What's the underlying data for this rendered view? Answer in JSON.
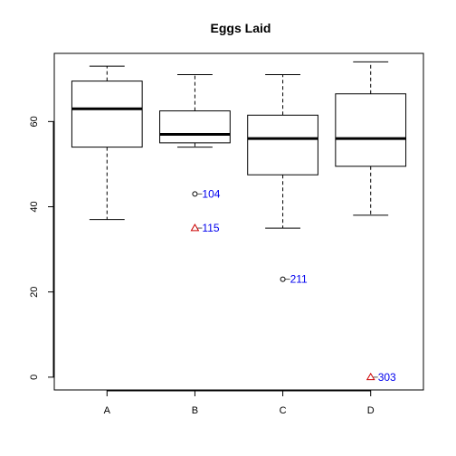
{
  "chart_data": {
    "type": "boxplot",
    "title": "Eggs Laid",
    "xlabel": "",
    "ylabel": "",
    "categories": [
      "A",
      "B",
      "C",
      "D"
    ],
    "ylim": [
      -3,
      76
    ],
    "yticks": [
      0,
      20,
      40,
      60
    ],
    "grid": false,
    "boxes": [
      {
        "category": "A",
        "whisker_low": 37,
        "q1": 54,
        "median": 63,
        "q3": 69.5,
        "whisker_high": 73
      },
      {
        "category": "B",
        "whisker_low": 54,
        "q1": 55,
        "median": 57,
        "q3": 62.5,
        "whisker_high": 71
      },
      {
        "category": "C",
        "whisker_low": 35,
        "q1": 47.5,
        "median": 56,
        "q3": 61.5,
        "whisker_high": 71
      },
      {
        "category": "D",
        "whisker_low": 38,
        "q1": 49.5,
        "median": 56,
        "q3": 66.5,
        "whisker_high": 74
      }
    ],
    "outliers": [
      {
        "category": "B",
        "value": 43,
        "label": "104",
        "marker": "circle",
        "color": "#000000"
      },
      {
        "category": "B",
        "value": 35,
        "label": "115",
        "marker": "triangle",
        "color": "#cc0000"
      },
      {
        "category": "C",
        "value": 23,
        "label": "211",
        "marker": "circle",
        "color": "#000000"
      },
      {
        "category": "D",
        "value": 0,
        "label": "303",
        "marker": "triangle",
        "color": "#cc0000"
      }
    ],
    "label_color": "#0000ee"
  }
}
